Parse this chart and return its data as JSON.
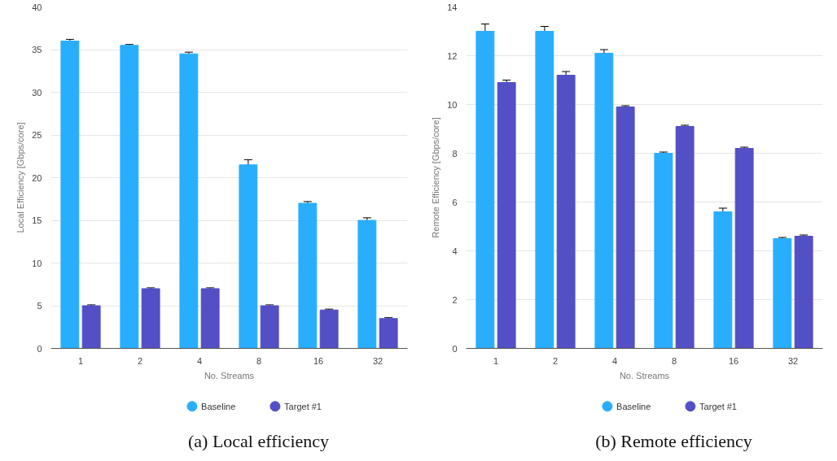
{
  "chart_data": [
    {
      "type": "bar",
      "title": "(a) Local efficiency",
      "xlabel": "No. Streams",
      "ylabel": "Local Efficiency [Gbps/core]",
      "categories": [
        "1",
        "2",
        "4",
        "8",
        "16",
        "32"
      ],
      "ylim": [
        0,
        40
      ],
      "yticks": [
        0,
        5,
        10,
        15,
        20,
        25,
        30,
        35,
        40
      ],
      "grid": "y",
      "legend": "bottom",
      "series": [
        {
          "name": "Baseline",
          "color": "#29aefe",
          "values": [
            36,
            35.5,
            34.5,
            21.5,
            17,
            15
          ],
          "errors": [
            0.2,
            0.1,
            0.2,
            0.6,
            0.2,
            0.3
          ]
        },
        {
          "name": "Target #1",
          "color": "#534fc4",
          "values": [
            5,
            7,
            7,
            5,
            4.5,
            3.5
          ],
          "errors": [
            0.1,
            0.1,
            0.1,
            0.1,
            0.1,
            0.1
          ]
        }
      ]
    },
    {
      "type": "bar",
      "title": "(b) Remote efficiency",
      "xlabel": "No. Streams",
      "ylabel": "Remote Efficiency [Gbps/core]",
      "categories": [
        "1",
        "2",
        "4",
        "8",
        "16",
        "32"
      ],
      "ylim": [
        0,
        14
      ],
      "yticks": [
        0,
        2,
        4,
        6,
        8,
        10,
        12,
        14
      ],
      "grid": "y",
      "legend": "bottom",
      "series": [
        {
          "name": "Baseline",
          "color": "#29aefe",
          "values": [
            13,
            13,
            12.1,
            8,
            5.6,
            4.5
          ],
          "errors": [
            0.3,
            0.2,
            0.15,
            0.05,
            0.15,
            0.05
          ]
        },
        {
          "name": "Target #1",
          "color": "#534fc4",
          "values": [
            10.9,
            11.2,
            9.9,
            9.1,
            8.2,
            4.6
          ],
          "errors": [
            0.1,
            0.15,
            0.05,
            0.05,
            0.05,
            0.05
          ]
        }
      ]
    }
  ]
}
